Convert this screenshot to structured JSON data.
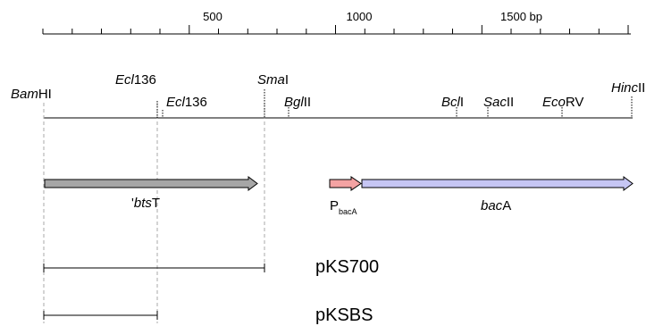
{
  "scale": {
    "tick_labels": [
      {
        "value": 500,
        "text": "500"
      },
      {
        "value": 1000,
        "text": "1000"
      },
      {
        "value": 1500,
        "text": "1500 bp"
      }
    ]
  },
  "sites": [
    {
      "id": "bamhi",
      "italic": "Bam",
      "rest": "HI"
    },
    {
      "id": "ecl136-upper",
      "italic": "Ecl",
      "rest": "136"
    },
    {
      "id": "ecl136-lower",
      "italic": "Ecl",
      "rest": "136"
    },
    {
      "id": "smai",
      "italic": "Sma",
      "rest": "I"
    },
    {
      "id": "bglii",
      "italic": "Bgl",
      "rest": "II"
    },
    {
      "id": "bcli",
      "italic": "Bcl",
      "rest": "I"
    },
    {
      "id": "sacii",
      "italic": "Sac",
      "rest": "II"
    },
    {
      "id": "ecorv",
      "italic": "Eco",
      "rest": "RV"
    },
    {
      "id": "hincii",
      "italic": "Hinc",
      "rest": "II"
    }
  ],
  "genes": {
    "btst": {
      "prefix": "'",
      "italic": "bts",
      "rest": "T",
      "color": "#a6a6a6"
    },
    "promoter": {
      "main": "P",
      "sub": "bacA",
      "color": "#f4a3a3"
    },
    "baca": {
      "italic": "bac",
      "rest": "A",
      "color": "#c6c6f4"
    }
  },
  "plasmids": [
    {
      "id": "pks700",
      "label": "pKS700"
    },
    {
      "id": "pksbs",
      "label": "pKSBS"
    }
  ]
}
